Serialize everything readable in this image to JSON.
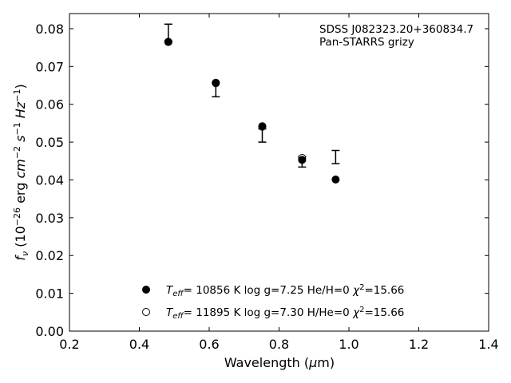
{
  "chart_data": {
    "type": "scatter",
    "title": "",
    "xlabel": "Wavelength (μm)",
    "ylabel": "f_ν (10^-26 erg cm^-2 s^-1 Hz^-1)",
    "xlim": [
      0.2,
      1.4
    ],
    "ylim": [
      0.0,
      0.084
    ],
    "x_ticks": [
      "0.2",
      "0.4",
      "0.6",
      "0.8",
      "1.0",
      "1.2",
      "1.4"
    ],
    "y_ticks": [
      "0.00",
      "0.01",
      "0.02",
      "0.03",
      "0.04",
      "0.05",
      "0.06",
      "0.07",
      "0.08"
    ],
    "grid": false,
    "annotations": [
      "SDSS J082323.20+360834.7",
      "Pan-STARRS grizy"
    ],
    "observed": {
      "x": [
        0.483,
        0.619,
        0.752,
        0.866,
        0.962
      ],
      "y_low": [
        0.0768,
        0.062,
        0.05,
        0.0434,
        0.0443
      ],
      "y_high": [
        0.0812,
        0.0658,
        0.0535,
        0.0462,
        0.0478
      ]
    },
    "series": [
      {
        "name": "T_eff= 10856 K  log g=7.25  He/H=0  χ²=15.66",
        "marker": "filled",
        "x": [
          0.483,
          0.619,
          0.752,
          0.866,
          0.962
        ],
        "y": [
          0.0765,
          0.0656,
          0.0542,
          0.0453,
          0.0401
        ]
      },
      {
        "name": "T_eff= 11895 K  log g=7.30  H/He=0  χ²=15.66",
        "marker": "open",
        "x": [
          0.483,
          0.619,
          0.752,
          0.866
        ],
        "y": [
          0.0765,
          0.0657,
          0.0541,
          0.0458
        ]
      }
    ],
    "legend_placement": "lower-center"
  }
}
